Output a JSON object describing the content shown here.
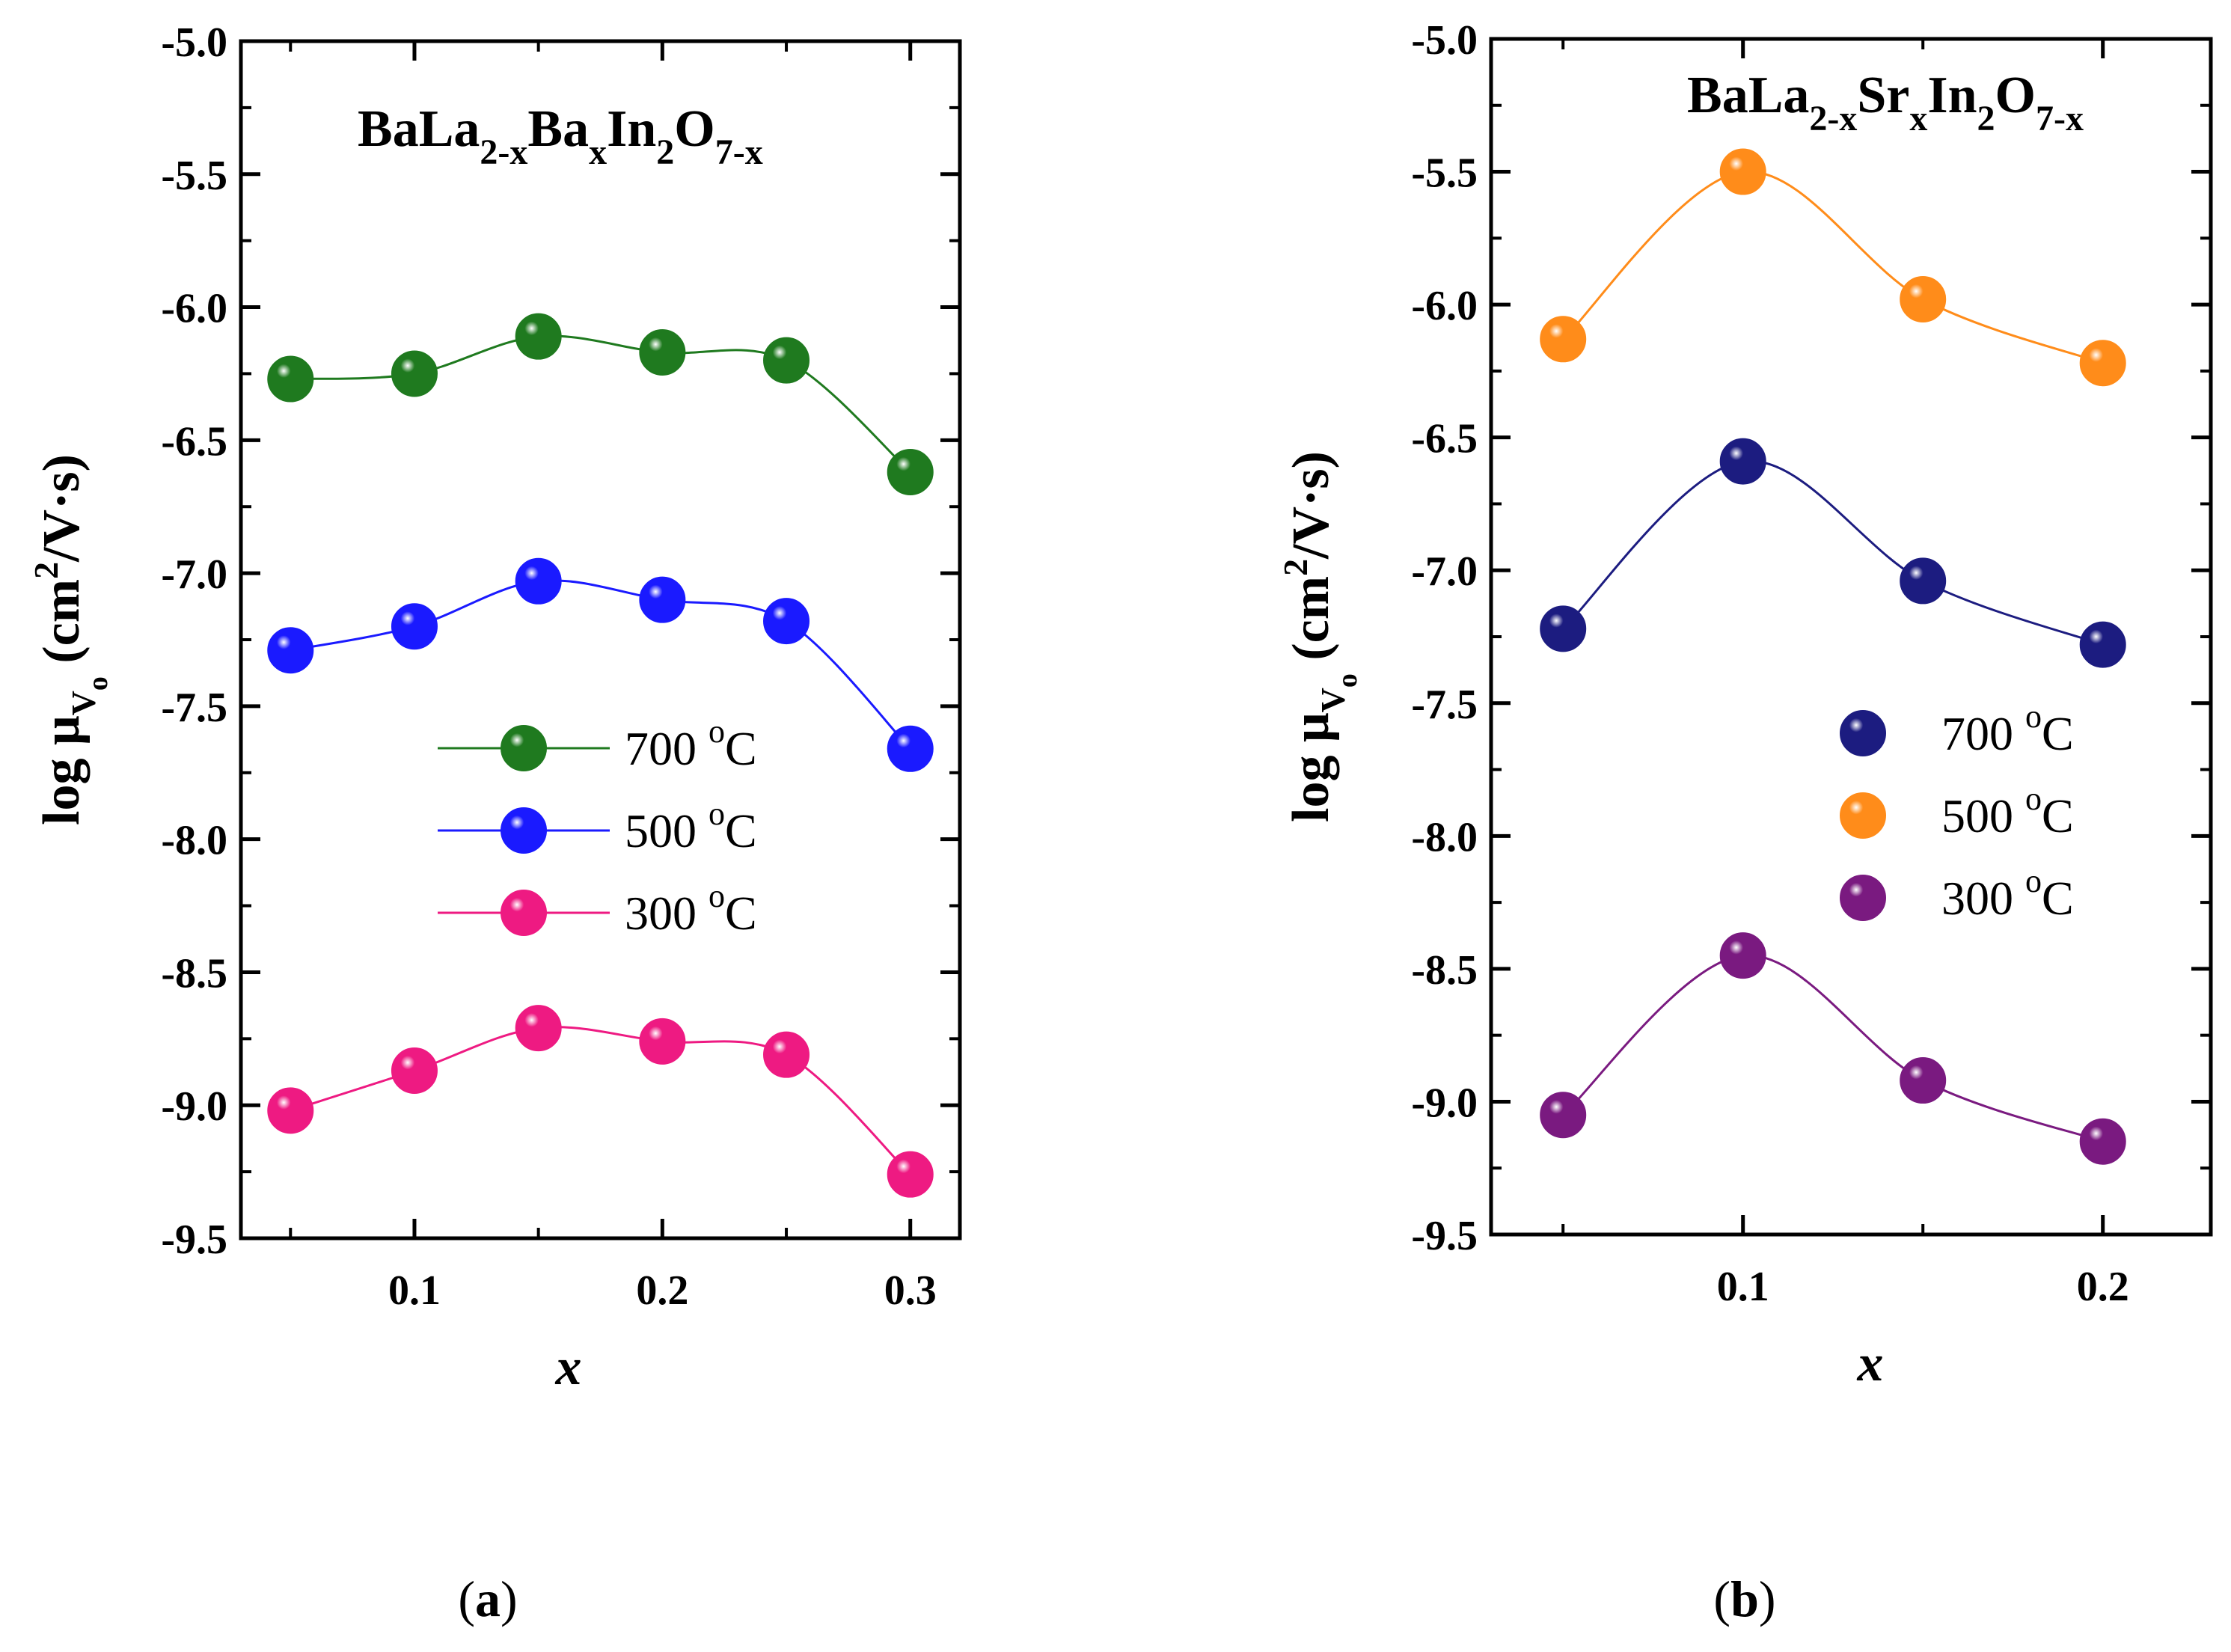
{
  "chart_data": [
    {
      "type": "scatter",
      "panel_label": "(a)",
      "title": "BaLa2-xBaxIn2O7-x",
      "title_parts": [
        {
          "t": "BaLa",
          "sub": false
        },
        {
          "t": "2-x",
          "sub": true
        },
        {
          "t": "Ba",
          "sub": false
        },
        {
          "t": "x",
          "sub": true
        },
        {
          "t": "In",
          "sub": false
        },
        {
          "t": "2",
          "sub": true
        },
        {
          "t": "O",
          "sub": false
        },
        {
          "t": "7-x",
          "sub": true
        }
      ],
      "xlabel": "x",
      "ylabel": "log μVo (cm2/V·s)",
      "ylabel_parts": {
        "pre": "log μ",
        "sub1": "V",
        "sub2": "o",
        "mid": " (cm",
        "sup": "2",
        "post": "/V·s)"
      },
      "xlim": [
        0.03,
        0.32
      ],
      "ylim": [
        -9.5,
        -5.0
      ],
      "xticks": [
        0.1,
        0.2,
        0.3
      ],
      "xtick_labels": [
        "0.1",
        "0.2",
        "0.3"
      ],
      "yticks": [
        -9.5,
        -9.0,
        -8.5,
        -8.0,
        -7.5,
        -7.0,
        -6.5,
        -6.0,
        -5.5,
        -5.0
      ],
      "ytick_labels": [
        "-9.5",
        "-9.0",
        "-8.5",
        "-8.0",
        "-7.5",
        "-7.0",
        "-6.5",
        "-6.0",
        "-5.5",
        "-5.0"
      ],
      "legend_position": "center-right",
      "legend_has_lines": true,
      "x": [
        0.05,
        0.1,
        0.15,
        0.2,
        0.25,
        0.3
      ],
      "series": [
        {
          "name": "700 °C",
          "name_main": "700 ",
          "name_sup": "o",
          "name_unit": "C",
          "color": "#1f7a1f",
          "values": [
            -6.27,
            -6.25,
            -6.11,
            -6.17,
            -6.2,
            -6.62
          ]
        },
        {
          "name": "500 °C",
          "name_main": "500 ",
          "name_sup": "o",
          "name_unit": "C",
          "color": "#1a1aff",
          "values": [
            -7.29,
            -7.2,
            -7.03,
            -7.1,
            -7.18,
            -7.66
          ]
        },
        {
          "name": "300 °C",
          "name_main": "300 ",
          "name_sup": "o",
          "name_unit": "C",
          "color": "#ee1a82",
          "values": [
            -9.02,
            -8.87,
            -8.71,
            -8.76,
            -8.81,
            -9.26
          ]
        }
      ]
    },
    {
      "type": "scatter",
      "panel_label": "(b)",
      "title": "BaLa2-xSrxIn2O7-x",
      "title_parts": [
        {
          "t": "BaLa",
          "sub": false
        },
        {
          "t": "2-x",
          "sub": true
        },
        {
          "t": "Sr",
          "sub": false
        },
        {
          "t": "x",
          "sub": true
        },
        {
          "t": "In",
          "sub": false
        },
        {
          "t": "2",
          "sub": true
        },
        {
          "t": "O",
          "sub": false
        },
        {
          "t": "7-x",
          "sub": true
        }
      ],
      "xlabel": "x",
      "ylabel": "log μVo (cm2/V·s)",
      "ylabel_parts": {
        "pre": "log μ",
        "sub1": "V",
        "sub2": "o",
        "mid": " (cm",
        "sup": "2",
        "post": "/V·s)"
      },
      "xlim": [
        0.03,
        0.23
      ],
      "ylim": [
        -9.5,
        -5.0
      ],
      "xticks": [
        0.1,
        0.2
      ],
      "xtick_labels": [
        "0.1",
        "0.2"
      ],
      "yticks": [
        -9.5,
        -9.0,
        -8.5,
        -8.0,
        -7.5,
        -7.0,
        -6.5,
        -6.0,
        -5.5,
        -5.0
      ],
      "ytick_labels": [
        "-9.5",
        "-9.0",
        "-8.5",
        "-8.0",
        "-7.5",
        "-7.0",
        "-6.5",
        "-6.0",
        "-5.5",
        "-5.0"
      ],
      "legend_position": "center-right",
      "legend_has_lines": false,
      "x": [
        0.05,
        0.1,
        0.15,
        0.2
      ],
      "series": [
        {
          "name": "700 °C",
          "name_main": "700 ",
          "name_sup": "o",
          "name_unit": "C",
          "color": "#1c1c80",
          "values": [
            -7.22,
            -6.59,
            -7.04,
            -7.28
          ]
        },
        {
          "name": "500 °C",
          "name_main": "500 ",
          "name_sup": "o",
          "name_unit": "C",
          "color": "#ff8c1a",
          "values": [
            -6.13,
            -5.5,
            -5.98,
            -6.22
          ]
        },
        {
          "name": "300 °C",
          "name_main": "300 ",
          "name_sup": "o",
          "name_unit": "C",
          "color": "#7a1a80",
          "values": [
            -9.05,
            -8.45,
            -8.92,
            -9.15
          ]
        }
      ]
    }
  ]
}
